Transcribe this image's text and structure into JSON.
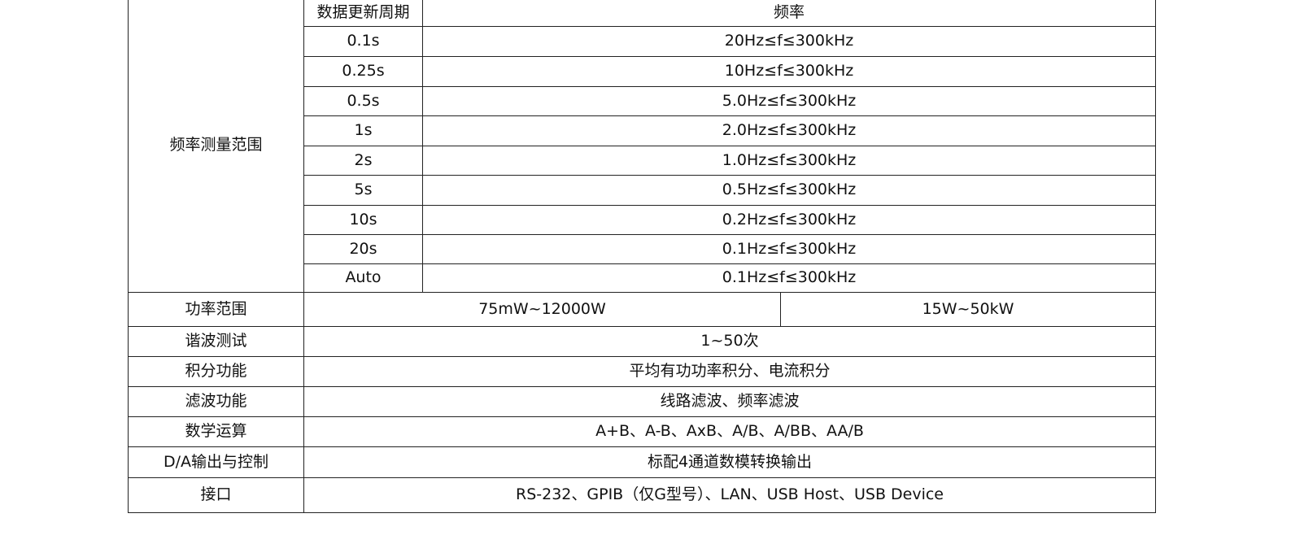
{
  "freq_section": {
    "label": "频率测量范围",
    "header_period": "数据更新周期",
    "header_freq": "频率",
    "rows": [
      {
        "period": "0.1s",
        "freq": "20Hz≤f≤300kHz"
      },
      {
        "period": "0.25s",
        "freq": "10Hz≤f≤300kHz"
      },
      {
        "period": "0.5s",
        "freq": "5.0Hz≤f≤300kHz"
      },
      {
        "period": "1s",
        "freq": "2.0Hz≤f≤300kHz"
      },
      {
        "period": "2s",
        "freq": "1.0Hz≤f≤300kHz"
      },
      {
        "period": "5s",
        "freq": "0.5Hz≤f≤300kHz"
      },
      {
        "period": "10s",
        "freq": "0.2Hz≤f≤300kHz"
      },
      {
        "period": "20s",
        "freq": "0.1Hz≤f≤300kHz"
      },
      {
        "period": "Auto",
        "freq": "0.1Hz≤f≤300kHz"
      }
    ]
  },
  "power": {
    "label": "功率范围",
    "value_a": "75mW~12000W",
    "value_b": "15W~50kW"
  },
  "rows": [
    {
      "label": "谐波测试",
      "value": "1~50次"
    },
    {
      "label": "积分功能",
      "value": "平均有功功率积分、电流积分"
    },
    {
      "label": "滤波功能",
      "value": "线路滤波、频率滤波"
    },
    {
      "label": "数学运算",
      "value": "A+B、A-B、AxB、A/B、A/BB、AA/B"
    },
    {
      "label": "D/A输出与控制",
      "value": "标配4通道数模转换输出"
    },
    {
      "label": "接口",
      "value": "RS-232、GPIB（仅G型号）、LAN、USB Host、USB Device"
    }
  ]
}
